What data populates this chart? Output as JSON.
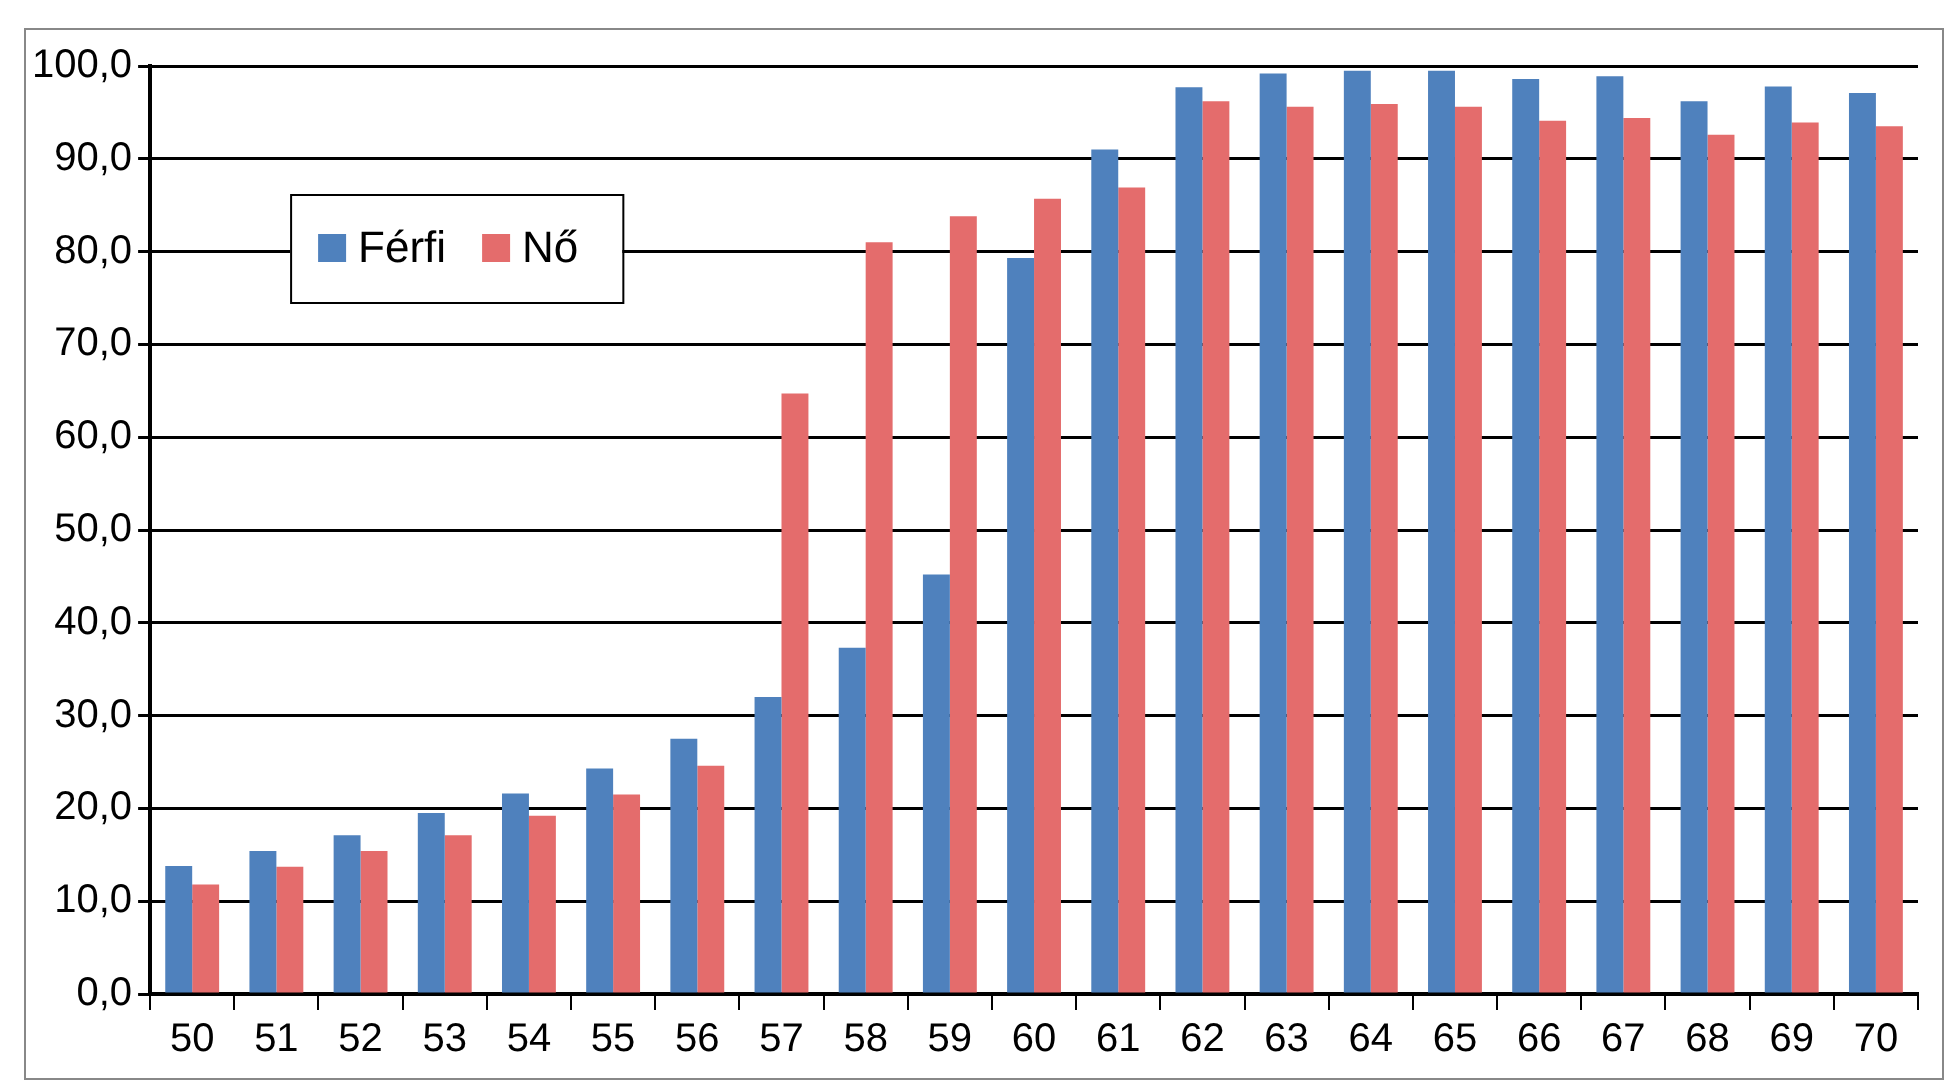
{
  "chart_data": {
    "type": "bar",
    "categories": [
      "50",
      "51",
      "52",
      "53",
      "54",
      "55",
      "56",
      "57",
      "58",
      "59",
      "60",
      "61",
      "62",
      "63",
      "64",
      "65",
      "66",
      "67",
      "68",
      "69",
      "70"
    ],
    "series": [
      {
        "name": "Férfi",
        "color": "#4f81bd",
        "values": [
          13.8,
          15.4,
          17.1,
          19.5,
          21.6,
          24.3,
          27.5,
          32.0,
          37.3,
          45.2,
          79.3,
          91.0,
          97.7,
          99.2,
          99.5,
          99.5,
          98.6,
          98.9,
          96.2,
          97.8,
          97.1
        ]
      },
      {
        "name": "Nő",
        "color": "#e46c6c",
        "values": [
          11.8,
          13.7,
          15.4,
          17.1,
          19.2,
          21.5,
          24.6,
          64.7,
          81.0,
          83.8,
          85.7,
          86.9,
          96.2,
          95.6,
          95.9,
          95.6,
          94.1,
          94.4,
          92.6,
          93.9,
          93.5
        ]
      }
    ],
    "ylim": [
      0,
      100
    ],
    "yticks": [
      {
        "value": 0,
        "label": "0,0"
      },
      {
        "value": 10,
        "label": "10,0"
      },
      {
        "value": 20,
        "label": "20,0"
      },
      {
        "value": 30,
        "label": "30,0"
      },
      {
        "value": 40,
        "label": "40,0"
      },
      {
        "value": 50,
        "label": "50,0"
      },
      {
        "value": 60,
        "label": "60,0"
      },
      {
        "value": 70,
        "label": "70,0"
      },
      {
        "value": 80,
        "label": "80,0"
      },
      {
        "value": 90,
        "label": "90,0"
      },
      {
        "value": 100,
        "label": "100,0"
      }
    ],
    "grid": "y",
    "legend": "top left"
  }
}
